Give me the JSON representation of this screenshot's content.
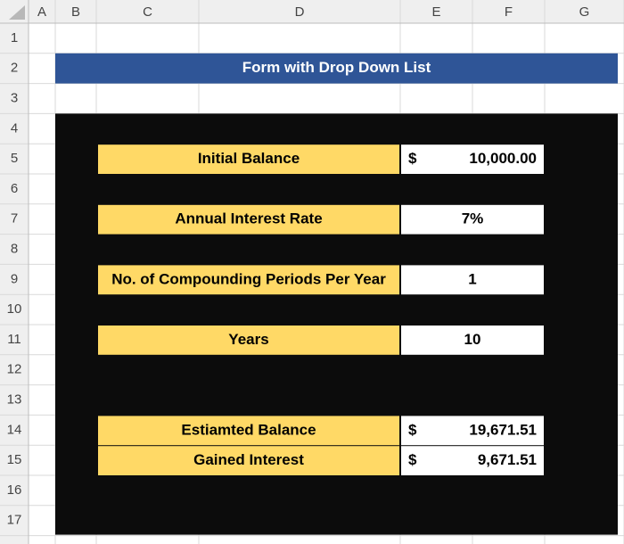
{
  "columns": [
    "A",
    "B",
    "C",
    "D",
    "E",
    "F",
    "G"
  ],
  "rows": [
    1,
    2,
    3,
    4,
    5,
    6,
    7,
    8,
    9,
    10,
    11,
    12,
    13,
    14,
    15,
    16,
    17
  ],
  "form": {
    "title": "Form with Drop Down List",
    "fields": [
      {
        "label": "Initial Balance",
        "currency": "$",
        "value": "10,000.00"
      },
      {
        "label": "Annual Interest Rate",
        "value": "7%"
      },
      {
        "label": "No. of Compounding Periods Per Year",
        "value": "1"
      },
      {
        "label": "Years",
        "value": "10"
      },
      {
        "label": "Estiamted Balance",
        "currency": "$",
        "value": "19,671.51"
      },
      {
        "label": "Gained Interest",
        "currency": "$",
        "value": "9,671.51"
      }
    ]
  }
}
